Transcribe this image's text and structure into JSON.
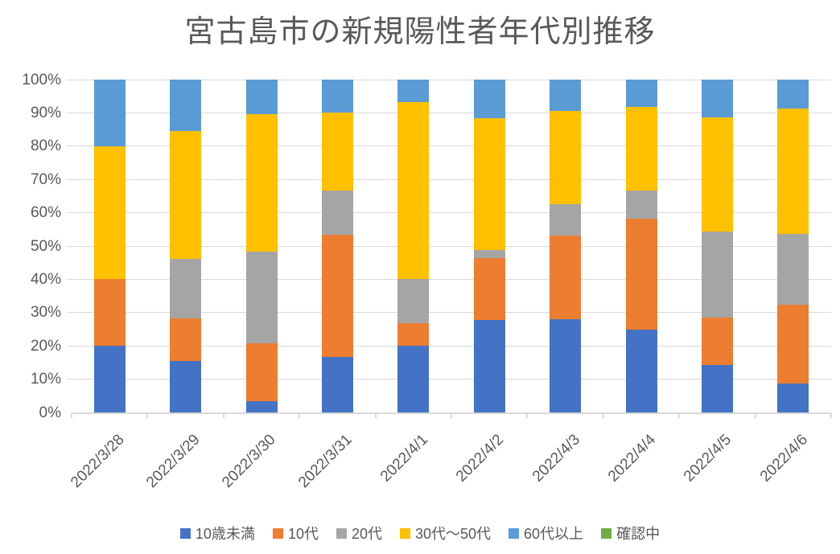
{
  "chart_data": {
    "type": "bar",
    "variant": "100-percent-stacked-column",
    "title": "宮古島市の新規陽性者年代別推移",
    "unit": "%",
    "categories": [
      "2022/3/28",
      "2022/3/29",
      "2022/3/30",
      "2022/3/31",
      "2022/4/1",
      "2022/4/2",
      "2022/4/3",
      "2022/4/4",
      "2022/4/5",
      "2022/4/6"
    ],
    "series": [
      {
        "name": "10歳未満",
        "color": "#4472C4",
        "values": [
          20.0,
          15.4,
          3.4,
          16.7,
          20.0,
          27.9,
          28.1,
          25.0,
          14.3,
          8.7
        ]
      },
      {
        "name": "10代",
        "color": "#ED7D31",
        "values": [
          20.0,
          12.8,
          17.3,
          36.6,
          6.7,
          18.6,
          25.0,
          33.3,
          14.3,
          23.6
        ]
      },
      {
        "name": "20代",
        "color": "#A5A5A5",
        "values": [
          0.0,
          17.9,
          27.6,
          13.4,
          13.3,
          2.3,
          9.4,
          8.4,
          25.7,
          21.3
        ]
      },
      {
        "name": "30代〜50代",
        "color": "#FFC000",
        "values": [
          40.0,
          38.5,
          41.4,
          23.3,
          53.3,
          39.6,
          28.1,
          25.0,
          34.3,
          37.7
        ]
      },
      {
        "name": "60代以上",
        "color": "#5B9BD5",
        "values": [
          20.0,
          15.4,
          10.3,
          10.0,
          6.7,
          11.6,
          9.4,
          8.3,
          11.4,
          8.7
        ]
      },
      {
        "name": "確認中",
        "color": "#70AD47",
        "values": [
          0.0,
          0.0,
          0.0,
          0.0,
          0.0,
          0.0,
          0.0,
          0.0,
          0.0,
          0.0
        ]
      }
    ],
    "y_axis": {
      "min": 0,
      "max": 100,
      "tick_step": 10,
      "tick_labels": [
        "0%",
        "10%",
        "20%",
        "30%",
        "40%",
        "50%",
        "60%",
        "70%",
        "80%",
        "90%",
        "100%"
      ],
      "grid": true
    },
    "x_axis": {
      "tick_marks": "between-categories"
    },
    "legend_position": "bottom",
    "colors": {
      "text": "#595959",
      "grid": "#D9D9D9",
      "axis": "#D9D9D9",
      "background": "#FFFFFF"
    }
  }
}
